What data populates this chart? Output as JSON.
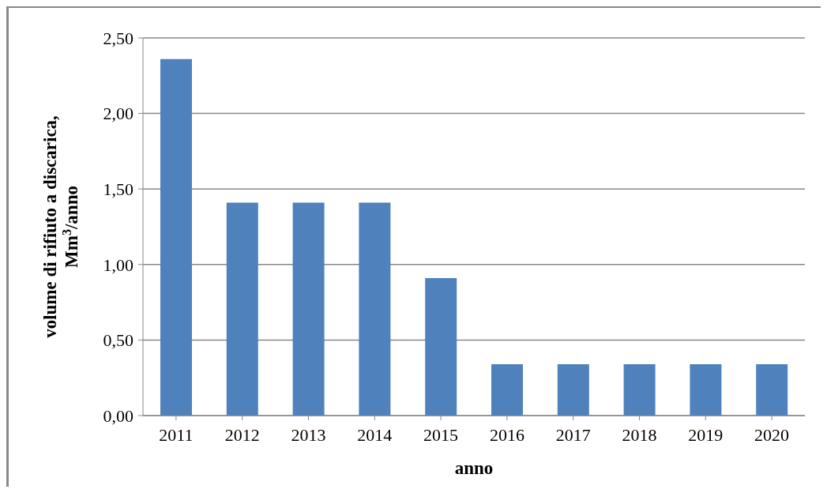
{
  "chart_data": {
    "type": "bar",
    "xlabel": "anno",
    "ylabel": "volume di rifiuto a discarica, Mm$^{3}$/anno",
    "categories": [
      "2011",
      "2012",
      "2013",
      "2014",
      "2015",
      "2016",
      "2017",
      "2018",
      "2019",
      "2020"
    ],
    "values": [
      2.36,
      1.41,
      1.41,
      1.41,
      0.91,
      0.34,
      0.34,
      0.34,
      0.34,
      0.34
    ],
    "color": "#4f81bd",
    "ylim": [
      0,
      2.5
    ],
    "yticks": [
      {
        "value": 0,
        "label": "0,00"
      },
      {
        "value": 0.5,
        "label": "0,50"
      },
      {
        "value": 1,
        "label": "1,00"
      },
      {
        "value": 1.5,
        "label": "1,50"
      },
      {
        "value": 2,
        "label": "2,00"
      },
      {
        "value": 2.5,
        "label": "2,50"
      }
    ],
    "grid": "y",
    "legend": false
  }
}
